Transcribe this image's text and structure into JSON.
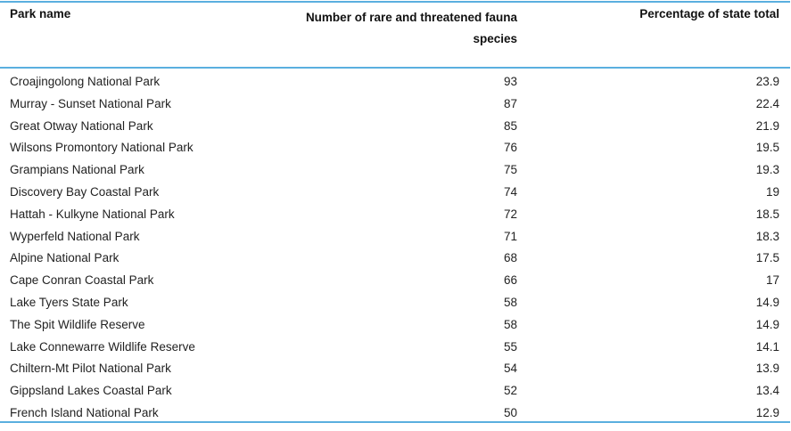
{
  "table": {
    "headers": {
      "park_name": "Park name",
      "count_line1": "Number of rare and threatened fauna",
      "count_line2": "species",
      "percentage": "Percentage of state total"
    },
    "rows": [
      {
        "name": "Croajingolong National Park",
        "count": "93",
        "pct": "23.9"
      },
      {
        "name": "Murray - Sunset National Park",
        "count": "87",
        "pct": "22.4"
      },
      {
        "name": "Great Otway National Park",
        "count": "85",
        "pct": "21.9"
      },
      {
        "name": "Wilsons Promontory National Park",
        "count": "76",
        "pct": "19.5"
      },
      {
        "name": "Grampians National Park",
        "count": "75",
        "pct": "19.3"
      },
      {
        "name": "Discovery Bay Coastal Park",
        "count": "74",
        "pct": "19"
      },
      {
        "name": "Hattah - Kulkyne National Park",
        "count": "72",
        "pct": "18.5"
      },
      {
        "name": "Wyperfeld National Park",
        "count": "71",
        "pct": "18.3"
      },
      {
        "name": "Alpine National Park",
        "count": "68",
        "pct": "17.5"
      },
      {
        "name": "Cape Conran Coastal Park",
        "count": "66",
        "pct": "17"
      },
      {
        "name": "Lake Tyers State Park",
        "count": "58",
        "pct": "14.9"
      },
      {
        "name": "The Spit Wildlife Reserve",
        "count": "58",
        "pct": "14.9"
      },
      {
        "name": "Lake Connewarre Wildlife Reserve",
        "count": "55",
        "pct": "14.1"
      },
      {
        "name": "Chiltern-Mt Pilot National Park",
        "count": "54",
        "pct": "13.9"
      },
      {
        "name": "Gippsland Lakes Coastal Park",
        "count": "52",
        "pct": "13.4"
      },
      {
        "name": "French Island National Park",
        "count": "50",
        "pct": "12.9"
      }
    ]
  }
}
